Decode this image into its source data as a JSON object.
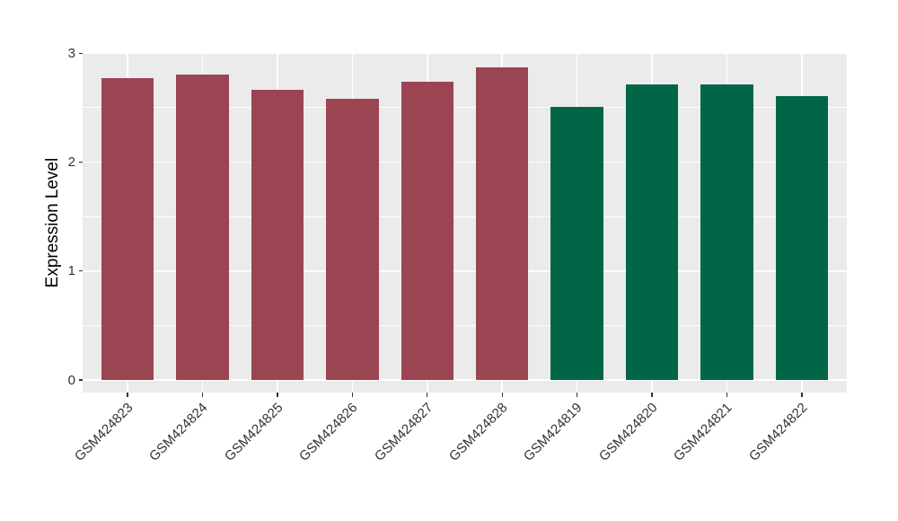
{
  "chart_data": {
    "type": "bar",
    "title": "",
    "xlabel": "",
    "ylabel": "Expression Level",
    "categories": [
      "GSM424823",
      "GSM424824",
      "GSM424825",
      "GSM424826",
      "GSM424827",
      "GSM424828",
      "GSM424819",
      "GSM424820",
      "GSM424821",
      "GSM424822"
    ],
    "values": [
      2.77,
      2.8,
      2.66,
      2.58,
      2.74,
      2.87,
      2.51,
      2.71,
      2.71,
      2.61
    ],
    "bar_colors": [
      "#9B4452",
      "#9B4452",
      "#9B4452",
      "#9B4452",
      "#9B4452",
      "#9B4452",
      "#006647",
      "#006647",
      "#006647",
      "#006647"
    ],
    "group_colors": {
      "red_group": "#9B4452",
      "green_group": "#006647"
    },
    "y_ticks": [
      0,
      1,
      2,
      3
    ],
    "y_minor_ticks": [
      0.5,
      1.5,
      2.5
    ],
    "ylim": [
      -0.115,
      3.01
    ],
    "grid": true,
    "legend": "none",
    "panel_bg": "#EBEBEB",
    "grid_color": "#FFFFFF",
    "axis_text_color": "#333333",
    "tick_color": "#333333"
  }
}
